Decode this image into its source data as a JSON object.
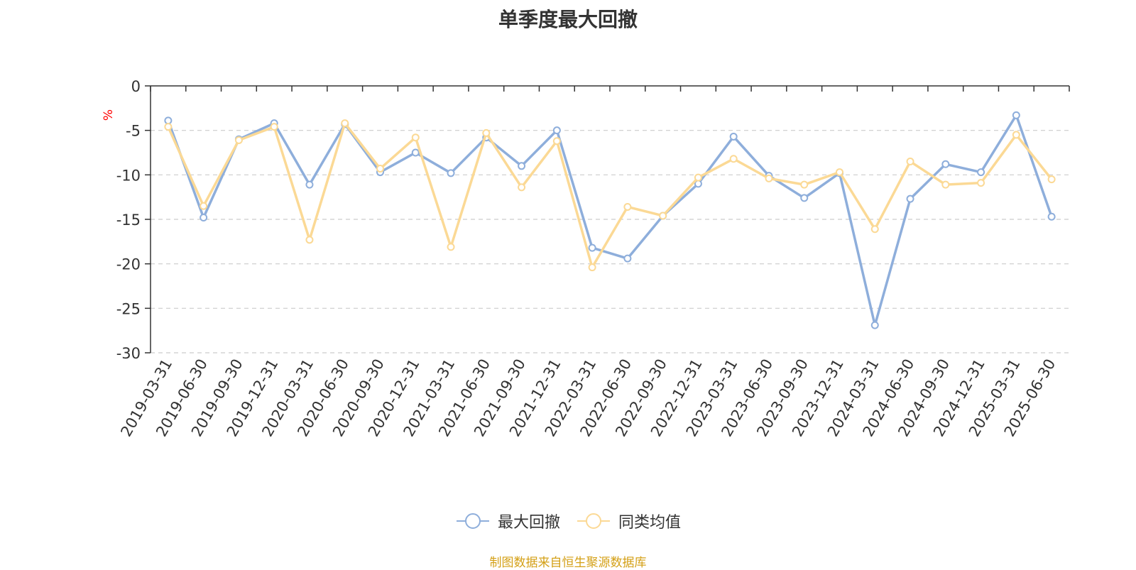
{
  "chart_data": {
    "type": "line",
    "title": "单季度最大回撤",
    "ylabel": "%",
    "ylim": [
      -30,
      0
    ],
    "yticks": [
      0,
      -5,
      -10,
      -15,
      -20,
      -25,
      -30
    ],
    "grid": true,
    "legend_position": "bottom",
    "categories": [
      "2019-03-31",
      "2019-06-30",
      "2019-09-30",
      "2019-12-31",
      "2020-03-31",
      "2020-06-30",
      "2020-09-30",
      "2020-12-31",
      "2021-03-31",
      "2021-06-30",
      "2021-09-30",
      "2021-12-31",
      "2022-03-31",
      "2022-06-30",
      "2022-09-30",
      "2022-12-31",
      "2023-03-31",
      "2023-06-30",
      "2023-09-30",
      "2023-12-31",
      "2024-03-31",
      "2024-06-30",
      "2024-09-30",
      "2024-12-31",
      "2025-03-31",
      "2025-06-30"
    ],
    "series": [
      {
        "name": "最大回撤",
        "color": "#8eaedb",
        "values": [
          -3.9,
          -14.8,
          -6.0,
          -4.2,
          -11.1,
          -4.3,
          -9.7,
          -7.5,
          -9.8,
          -5.8,
          -9.0,
          -5.0,
          -18.2,
          -19.4,
          -14.6,
          -11.0,
          -5.7,
          -10.1,
          -12.6,
          -9.8,
          -26.9,
          -12.7,
          -8.8,
          -9.7,
          -3.3,
          -14.7
        ]
      },
      {
        "name": "同类均值",
        "color": "#fbd995",
        "values": [
          -4.6,
          -13.5,
          -6.1,
          -4.6,
          -17.3,
          -4.2,
          -9.3,
          -5.8,
          -18.1,
          -5.3,
          -11.4,
          -6.2,
          -20.4,
          -13.6,
          -14.6,
          -10.3,
          -8.2,
          -10.4,
          -11.1,
          -9.7,
          -16.1,
          -8.5,
          -11.1,
          -10.9,
          -5.5,
          -10.5
        ]
      }
    ]
  },
  "source_note": "制图数据来自恒生聚源数据库"
}
